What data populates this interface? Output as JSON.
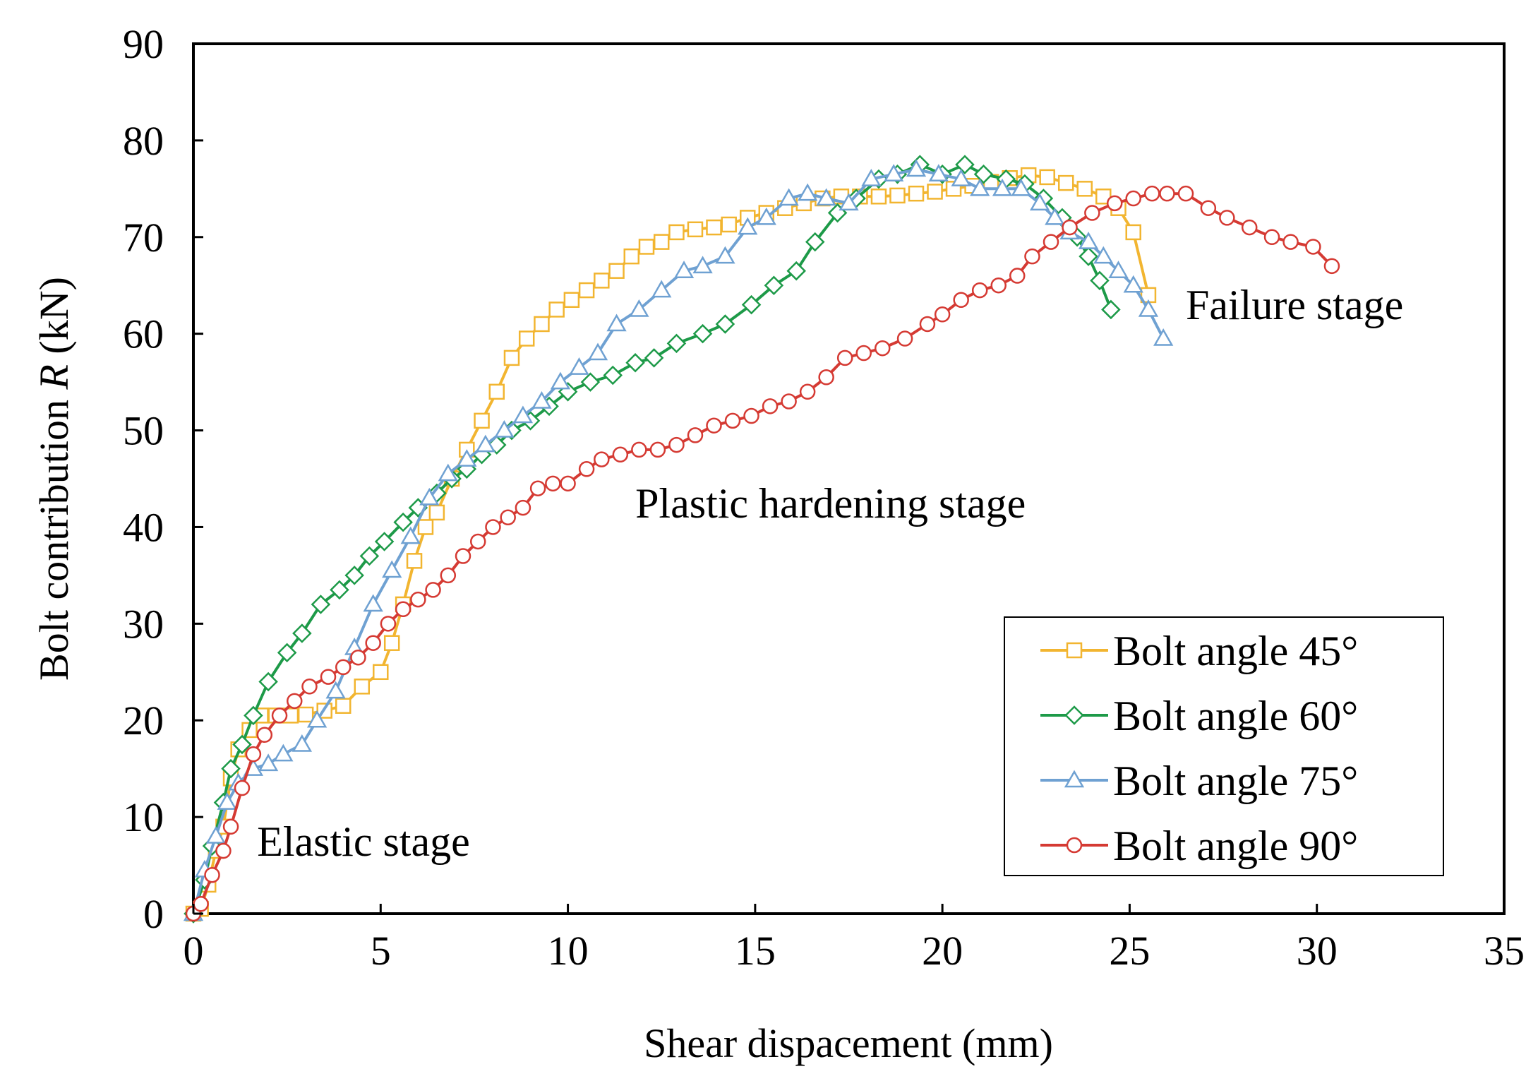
{
  "chart_data": {
    "type": "line",
    "title": "",
    "xlabel": "Shear dispacement (mm)",
    "ylabel_prefix": "Bolt contribution ",
    "ylabel_var": "R",
    "ylabel_suffix": " (kN)",
    "xlim": [
      0,
      35
    ],
    "ylim": [
      0,
      90
    ],
    "xticks": [
      0,
      5,
      10,
      15,
      20,
      25,
      30,
      35
    ],
    "yticks": [
      0,
      10,
      20,
      30,
      40,
      50,
      60,
      70,
      80,
      90
    ],
    "grid": false,
    "legend_position": "bottom-right",
    "annotations": [
      {
        "text": "Elastic stage",
        "x": 1.7,
        "y": 6
      },
      {
        "text": "Plastic hardening stage",
        "x": 11.8,
        "y": 41
      },
      {
        "text": "Failure stage",
        "x": 26.5,
        "y": 61.5
      }
    ],
    "series": [
      {
        "name": "Bolt angle 45°",
        "color": "#F2B530",
        "marker": "square",
        "points": [
          [
            0,
            0
          ],
          [
            0.2,
            0.5
          ],
          [
            0.4,
            3
          ],
          [
            0.6,
            6.5
          ],
          [
            0.8,
            9
          ],
          [
            1,
            14
          ],
          [
            1.2,
            17
          ],
          [
            1.5,
            19
          ],
          [
            1.8,
            20.5
          ],
          [
            2.2,
            20.5
          ],
          [
            2.6,
            20.5
          ],
          [
            3,
            20.6
          ],
          [
            3.5,
            21
          ],
          [
            4,
            21.5
          ],
          [
            4.5,
            23.5
          ],
          [
            5,
            25
          ],
          [
            5.3,
            28
          ],
          [
            5.6,
            32
          ],
          [
            5.9,
            36.5
          ],
          [
            6.2,
            40
          ],
          [
            6.5,
            41.5
          ],
          [
            6.9,
            45
          ],
          [
            7.3,
            48
          ],
          [
            7.7,
            51
          ],
          [
            8.1,
            54
          ],
          [
            8.5,
            57.5
          ],
          [
            8.9,
            59.5
          ],
          [
            9.3,
            61
          ],
          [
            9.7,
            62.5
          ],
          [
            10.1,
            63.5
          ],
          [
            10.5,
            64.5
          ],
          [
            10.9,
            65.5
          ],
          [
            11.3,
            66.5
          ],
          [
            11.7,
            68
          ],
          [
            12.1,
            69
          ],
          [
            12.5,
            69.5
          ],
          [
            12.9,
            70.5
          ],
          [
            13.4,
            70.8
          ],
          [
            13.9,
            71
          ],
          [
            14.3,
            71.3
          ],
          [
            14.8,
            72
          ],
          [
            15.3,
            72.5
          ],
          [
            15.8,
            73
          ],
          [
            16.3,
            73.5
          ],
          [
            16.8,
            74
          ],
          [
            17.3,
            74.2
          ],
          [
            17.8,
            74.2
          ],
          [
            18.3,
            74.2
          ],
          [
            18.8,
            74.3
          ],
          [
            19.3,
            74.5
          ],
          [
            19.8,
            74.7
          ],
          [
            20.3,
            75
          ],
          [
            20.8,
            75.3
          ],
          [
            21.3,
            75.7
          ],
          [
            21.8,
            76.1
          ],
          [
            22.3,
            76.4
          ],
          [
            22.8,
            76.2
          ],
          [
            23.3,
            75.6
          ],
          [
            23.8,
            75
          ],
          [
            24.3,
            74.2
          ],
          [
            24.7,
            73
          ],
          [
            25.1,
            70.5
          ],
          [
            25.5,
            64
          ]
        ]
      },
      {
        "name": "Bolt angle 60°",
        "color": "#1D9A48",
        "marker": "diamond",
        "points": [
          [
            0,
            0
          ],
          [
            0.3,
            3.5
          ],
          [
            0.5,
            7
          ],
          [
            0.8,
            11.5
          ],
          [
            1,
            15
          ],
          [
            1.3,
            17.5
          ],
          [
            1.6,
            20.5
          ],
          [
            2,
            24
          ],
          [
            2.5,
            27
          ],
          [
            2.9,
            29
          ],
          [
            3.4,
            32
          ],
          [
            3.9,
            33.5
          ],
          [
            4.3,
            35
          ],
          [
            4.7,
            37
          ],
          [
            5.1,
            38.5
          ],
          [
            5.6,
            40.5
          ],
          [
            6,
            42
          ],
          [
            6.5,
            43.5
          ],
          [
            6.9,
            45
          ],
          [
            7.3,
            46
          ],
          [
            7.7,
            47.5
          ],
          [
            8.1,
            48.5
          ],
          [
            8.5,
            50
          ],
          [
            9,
            51
          ],
          [
            9.5,
            52.5
          ],
          [
            10,
            54
          ],
          [
            10.6,
            55
          ],
          [
            11.2,
            55.7
          ],
          [
            11.8,
            57
          ],
          [
            12.3,
            57.5
          ],
          [
            12.9,
            59
          ],
          [
            13.6,
            60
          ],
          [
            14.2,
            61
          ],
          [
            14.9,
            63
          ],
          [
            15.5,
            65
          ],
          [
            16.1,
            66.5
          ],
          [
            16.6,
            69.5
          ],
          [
            17.2,
            72.5
          ],
          [
            17.7,
            74
          ],
          [
            18.3,
            76
          ],
          [
            18.8,
            76.5
          ],
          [
            19.4,
            77.5
          ],
          [
            20,
            76.5
          ],
          [
            20.6,
            77.5
          ],
          [
            21.1,
            76.5
          ],
          [
            21.7,
            76
          ],
          [
            22.2,
            75.5
          ],
          [
            22.7,
            74
          ],
          [
            23.2,
            72
          ],
          [
            23.6,
            70
          ],
          [
            23.9,
            68
          ],
          [
            24.2,
            65.5
          ],
          [
            24.5,
            62.5
          ]
        ]
      },
      {
        "name": "Bolt angle 75°",
        "color": "#6FA1D2",
        "marker": "triangle",
        "points": [
          [
            0,
            0
          ],
          [
            0.3,
            4.5
          ],
          [
            0.6,
            8
          ],
          [
            0.9,
            11.5
          ],
          [
            1.2,
            13.5
          ],
          [
            1.6,
            15
          ],
          [
            2,
            15.5
          ],
          [
            2.4,
            16.5
          ],
          [
            2.9,
            17.5
          ],
          [
            3.3,
            20
          ],
          [
            3.8,
            23
          ],
          [
            4.3,
            27.5
          ],
          [
            4.8,
            32
          ],
          [
            5.3,
            35.5
          ],
          [
            5.8,
            39
          ],
          [
            6.3,
            43
          ],
          [
            6.8,
            45.5
          ],
          [
            7.3,
            47
          ],
          [
            7.8,
            48.5
          ],
          [
            8.3,
            50
          ],
          [
            8.8,
            51.5
          ],
          [
            9.3,
            53
          ],
          [
            9.8,
            55
          ],
          [
            10.3,
            56.5
          ],
          [
            10.8,
            58
          ],
          [
            11.3,
            61
          ],
          [
            11.9,
            62.5
          ],
          [
            12.5,
            64.5
          ],
          [
            13.1,
            66.5
          ],
          [
            13.6,
            67
          ],
          [
            14.2,
            68
          ],
          [
            14.8,
            71
          ],
          [
            15.3,
            72
          ],
          [
            15.9,
            74
          ],
          [
            16.4,
            74.5
          ],
          [
            16.9,
            74
          ],
          [
            17.5,
            73.5
          ],
          [
            18.1,
            76
          ],
          [
            18.7,
            76.5
          ],
          [
            19.3,
            77
          ],
          [
            19.9,
            76.5
          ],
          [
            20.5,
            76
          ],
          [
            21,
            75
          ],
          [
            21.6,
            75
          ],
          [
            22.1,
            75
          ],
          [
            22.6,
            73.5
          ],
          [
            23,
            72
          ],
          [
            23.4,
            70.5
          ],
          [
            23.9,
            69.5
          ],
          [
            24.3,
            68
          ],
          [
            24.7,
            66.5
          ],
          [
            25.1,
            65
          ],
          [
            25.5,
            62.5
          ],
          [
            25.9,
            59.5
          ]
        ]
      },
      {
        "name": "Bolt angle 90°",
        "color": "#D53A33",
        "marker": "circle",
        "points": [
          [
            0,
            0
          ],
          [
            0.2,
            1
          ],
          [
            0.5,
            4
          ],
          [
            0.8,
            6.5
          ],
          [
            1,
            9
          ],
          [
            1.3,
            13
          ],
          [
            1.6,
            16.5
          ],
          [
            1.9,
            18.5
          ],
          [
            2.3,
            20.5
          ],
          [
            2.7,
            22
          ],
          [
            3.1,
            23.5
          ],
          [
            3.6,
            24.5
          ],
          [
            4,
            25.5
          ],
          [
            4.4,
            26.5
          ],
          [
            4.8,
            28
          ],
          [
            5.2,
            30
          ],
          [
            5.6,
            31.5
          ],
          [
            6,
            32.5
          ],
          [
            6.4,
            33.5
          ],
          [
            6.8,
            35
          ],
          [
            7.2,
            37
          ],
          [
            7.6,
            38.5
          ],
          [
            8,
            40
          ],
          [
            8.4,
            41
          ],
          [
            8.8,
            42
          ],
          [
            9.2,
            44
          ],
          [
            9.6,
            44.5
          ],
          [
            10,
            44.5
          ],
          [
            10.5,
            46
          ],
          [
            10.9,
            47
          ],
          [
            11.4,
            47.5
          ],
          [
            11.9,
            48
          ],
          [
            12.4,
            48
          ],
          [
            12.9,
            48.5
          ],
          [
            13.4,
            49.5
          ],
          [
            13.9,
            50.5
          ],
          [
            14.4,
            51
          ],
          [
            14.9,
            51.5
          ],
          [
            15.4,
            52.5
          ],
          [
            15.9,
            53
          ],
          [
            16.4,
            54
          ],
          [
            16.9,
            55.5
          ],
          [
            17.4,
            57.5
          ],
          [
            17.9,
            58
          ],
          [
            18.4,
            58.5
          ],
          [
            19,
            59.5
          ],
          [
            19.6,
            61
          ],
          [
            20,
            62
          ],
          [
            20.5,
            63.5
          ],
          [
            21,
            64.5
          ],
          [
            21.5,
            65
          ],
          [
            22,
            66
          ],
          [
            22.4,
            68
          ],
          [
            22.9,
            69.5
          ],
          [
            23.4,
            71
          ],
          [
            24,
            72.5
          ],
          [
            24.6,
            73.5
          ],
          [
            25.1,
            74
          ],
          [
            25.6,
            74.5
          ],
          [
            26,
            74.5
          ],
          [
            26.5,
            74.5
          ],
          [
            27.1,
            73
          ],
          [
            27.6,
            72
          ],
          [
            28.2,
            71
          ],
          [
            28.8,
            70
          ],
          [
            29.3,
            69.5
          ],
          [
            29.9,
            69
          ],
          [
            30.4,
            67
          ]
        ]
      }
    ]
  }
}
